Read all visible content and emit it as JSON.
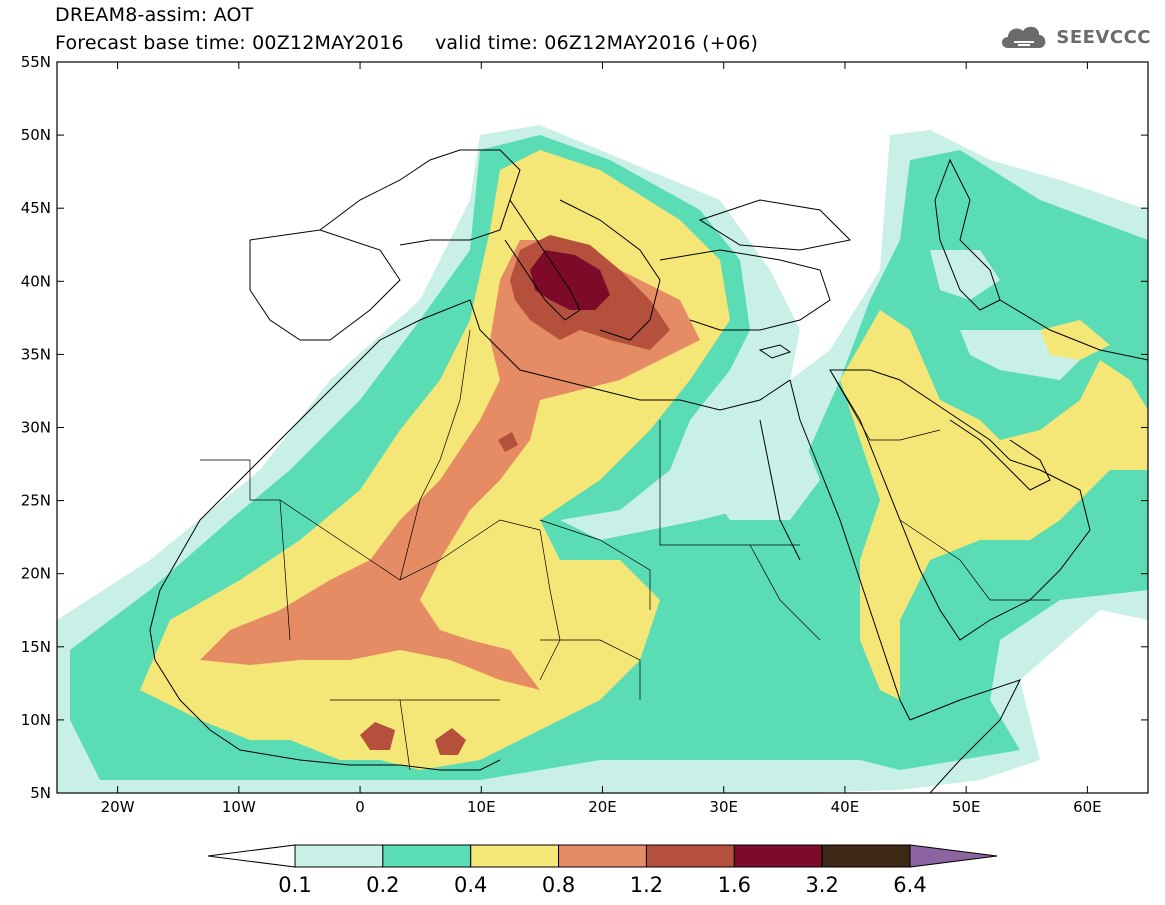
{
  "header": {
    "title_line1": "DREAM8-assim: AOT",
    "title_line2": "Forecast base time: 00Z12MAY2016     valid time: 06Z12MAY2016 (+06)"
  },
  "logo": {
    "text": "SEEVCCC",
    "icon": "cloud-icon"
  },
  "map": {
    "lat_labels": [
      "55N",
      "50N",
      "45N",
      "40N",
      "35N",
      "30N",
      "25N",
      "20N",
      "15N",
      "10N",
      "5N"
    ],
    "lon_labels": [
      "20W",
      "10W",
      "0",
      "10E",
      "20E",
      "30E",
      "40E",
      "50E",
      "60E"
    ]
  },
  "colorbar": {
    "labels": [
      "0.1",
      "0.2",
      "0.4",
      "0.8",
      "1.2",
      "1.6",
      "3.2",
      "6.4"
    ],
    "colors": [
      "#ffffff",
      "#c8f0e6",
      "#5adcb4",
      "#f5e678",
      "#e68c64",
      "#b4503c",
      "#7d0a28",
      "#3c2814",
      "#8c64a0"
    ]
  },
  "field_colors": {
    "ocean": "#ffffff",
    "c1": "#c8f0e6",
    "c2": "#5adcb4",
    "c3": "#f5e678",
    "c4": "#e68c64",
    "c5": "#b4503c",
    "c6": "#7d0a28"
  }
}
